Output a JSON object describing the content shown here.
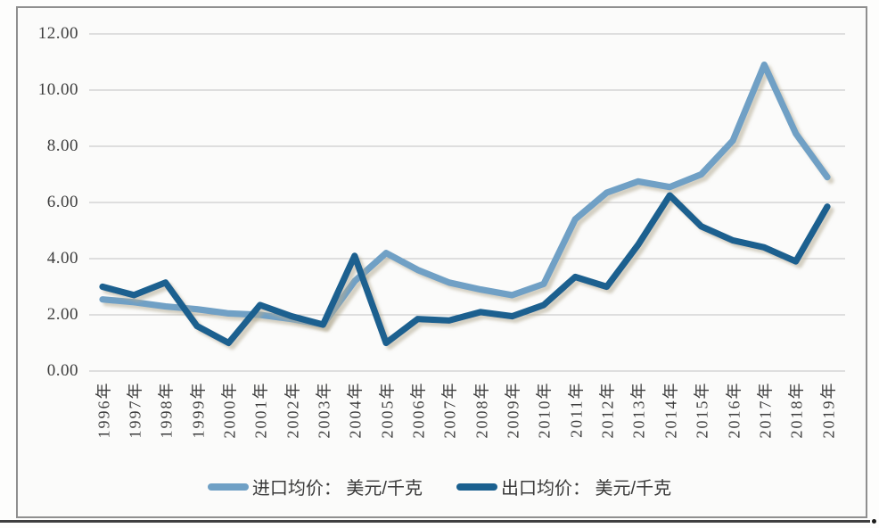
{
  "chart_data": {
    "type": "line",
    "title": "",
    "xlabel": "",
    "ylabel": "",
    "categories": [
      "1996年",
      "1997年",
      "1998年",
      "1999年",
      "2000年",
      "2001年",
      "2002年",
      "2003年",
      "2004年",
      "2005年",
      "2006年",
      "2007年",
      "2008年",
      "2009年",
      "2010年",
      "2011年",
      "2012年",
      "2013年",
      "2014年",
      "2015年",
      "2016年",
      "2017年",
      "2018年",
      "2019年"
    ],
    "series": [
      {
        "name": "进口均价： 美元/千克",
        "color": "#6FA0C5",
        "values": [
          2.55,
          2.45,
          2.3,
          2.2,
          2.05,
          2.0,
          1.85,
          1.65,
          3.2,
          4.2,
          3.6,
          3.15,
          2.9,
          2.7,
          3.1,
          5.4,
          6.35,
          6.75,
          6.55,
          7.0,
          8.2,
          10.9,
          8.45,
          6.9
        ]
      },
      {
        "name": "出口均价： 美元/千克",
        "color": "#1A608F",
        "values": [
          3.0,
          2.7,
          3.15,
          1.6,
          1.0,
          2.35,
          1.95,
          1.65,
          4.1,
          1.0,
          1.85,
          1.8,
          2.1,
          1.95,
          2.35,
          3.35,
          3.0,
          4.5,
          6.25,
          5.15,
          4.65,
          4.4,
          3.9,
          5.85
        ]
      }
    ],
    "yticks": [
      "0.00",
      "2.00",
      "4.00",
      "6.00",
      "8.00",
      "10.00",
      "12.00"
    ],
    "ylim": [
      0,
      12
    ],
    "grid": true,
    "legend_position": "bottom"
  },
  "colors": {
    "import_line": "#6FA0C5",
    "export_line": "#1A608F",
    "gridline": "#C2C2C2",
    "tick_text": "#3D3D3D"
  }
}
